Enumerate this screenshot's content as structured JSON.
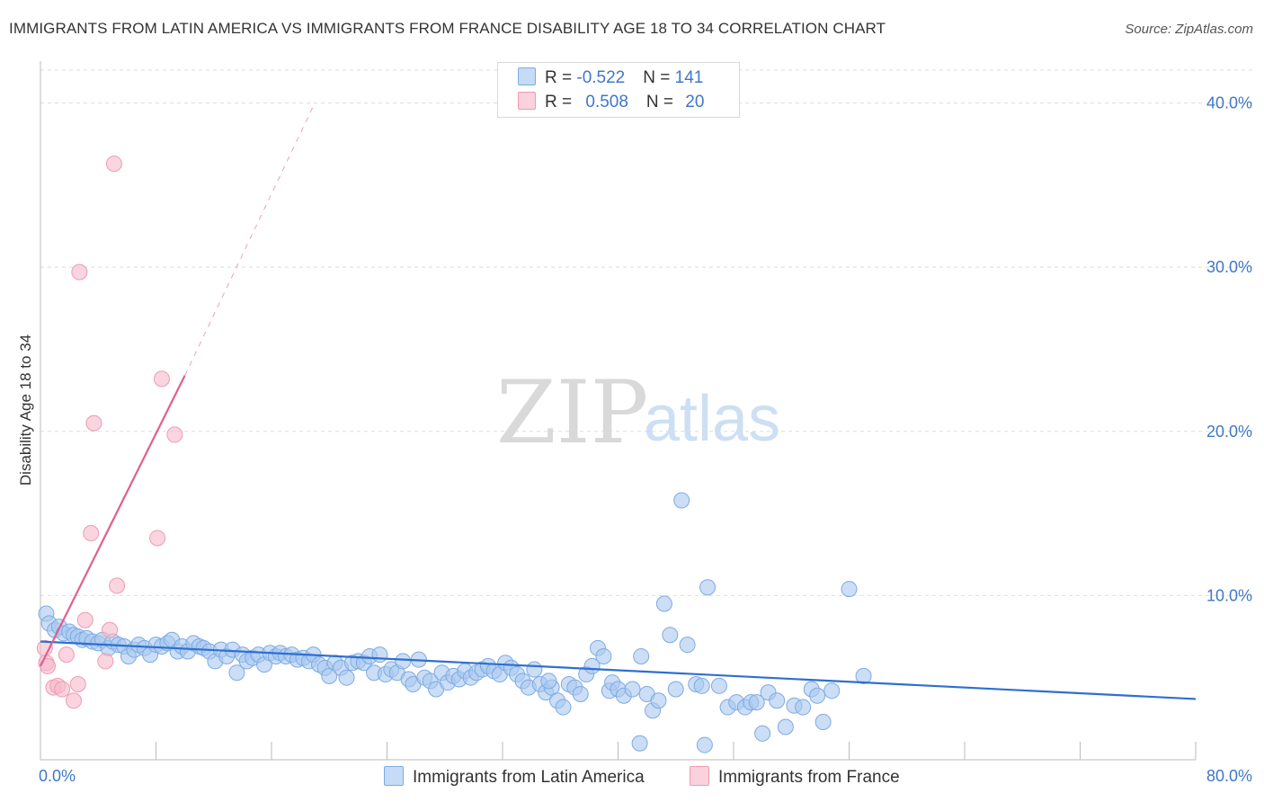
{
  "header": {
    "title": "IMMIGRANTS FROM LATIN AMERICA VS IMMIGRANTS FROM FRANCE DISABILITY AGE 18 TO 34 CORRELATION CHART",
    "source_prefix": "Source: ",
    "source_name": "ZipAtlas.com"
  },
  "watermark": {
    "zip": "ZIP",
    "atlas": "atlas"
  },
  "legend": {
    "rows": [
      {
        "r_label": "R = ",
        "r_value": "-0.522",
        "n_label": "N = ",
        "n_value": "141",
        "color": "#a9c8f0"
      },
      {
        "r_label": "R = ",
        "r_value": "0.508",
        "n_label": "N = ",
        "n_value": "20",
        "color": "#f6b9cc"
      }
    ]
  },
  "bottom_legend": [
    {
      "label": "Immigrants from Latin America",
      "color": "#a9c8f0"
    },
    {
      "label": "Immigrants from France",
      "color": "#f6b9cc"
    }
  ],
  "colors": {
    "blue_fill": "#a9c8f0",
    "blue_stroke": "#7eaae2",
    "blue_line": "#2f6fd0",
    "pink_fill": "#f6b9cc",
    "pink_stroke": "#ee9ab4",
    "pink_line": "#e0608c",
    "grid": "#dddddd",
    "tick_text": "#3f77c8"
  },
  "chart_data": {
    "type": "scatter",
    "title": "IMMIGRANTS FROM LATIN AMERICA VS IMMIGRANTS FROM FRANCE DISABILITY AGE 18 TO 34 CORRELATION CHART",
    "xlabel": "",
    "ylabel": "Disability Age 18 to 34",
    "xlim": [
      0,
      80
    ],
    "ylim": [
      0,
      42
    ],
    "x_tick_labels": [
      "0.0%",
      "80.0%"
    ],
    "y_ticks": [
      10,
      20,
      30,
      40
    ],
    "y_tick_labels": [
      "10.0%",
      "20.0%",
      "30.0%",
      "40.0%"
    ],
    "grid": true,
    "series": [
      {
        "name": "Immigrants from Latin America",
        "R": -0.522,
        "N": 141,
        "trend": {
          "x": [
            0,
            80
          ],
          "y": [
            7.2,
            3.7
          ]
        },
        "points": [
          [
            0.4,
            8.9
          ],
          [
            0.6,
            8.3
          ],
          [
            1.0,
            7.9
          ],
          [
            1.3,
            8.1
          ],
          [
            1.6,
            7.7
          ],
          [
            2.0,
            7.8
          ],
          [
            2.3,
            7.6
          ],
          [
            2.6,
            7.5
          ],
          [
            2.9,
            7.3
          ],
          [
            3.2,
            7.4
          ],
          [
            3.6,
            7.2
          ],
          [
            4.0,
            7.1
          ],
          [
            4.3,
            7.3
          ],
          [
            4.7,
            6.8
          ],
          [
            5.0,
            7.2
          ],
          [
            5.4,
            7.0
          ],
          [
            5.8,
            6.9
          ],
          [
            6.1,
            6.3
          ],
          [
            6.5,
            6.7
          ],
          [
            6.8,
            7.0
          ],
          [
            7.2,
            6.8
          ],
          [
            7.6,
            6.4
          ],
          [
            8.0,
            7.0
          ],
          [
            8.4,
            6.9
          ],
          [
            8.8,
            7.1
          ],
          [
            9.1,
            7.3
          ],
          [
            9.5,
            6.6
          ],
          [
            9.8,
            6.9
          ],
          [
            10.2,
            6.6
          ],
          [
            10.6,
            7.1
          ],
          [
            11.0,
            6.9
          ],
          [
            11.3,
            6.8
          ],
          [
            11.7,
            6.6
          ],
          [
            12.1,
            6.0
          ],
          [
            12.5,
            6.7
          ],
          [
            12.9,
            6.3
          ],
          [
            13.3,
            6.7
          ],
          [
            13.6,
            5.3
          ],
          [
            14.0,
            6.4
          ],
          [
            14.3,
            6.0
          ],
          [
            14.7,
            6.2
          ],
          [
            15.1,
            6.4
          ],
          [
            15.5,
            5.8
          ],
          [
            15.9,
            6.5
          ],
          [
            16.3,
            6.3
          ],
          [
            16.6,
            6.5
          ],
          [
            17.0,
            6.3
          ],
          [
            17.4,
            6.4
          ],
          [
            17.8,
            6.1
          ],
          [
            18.2,
            6.2
          ],
          [
            18.6,
            6.0
          ],
          [
            18.9,
            6.4
          ],
          [
            19.3,
            5.8
          ],
          [
            19.7,
            5.6
          ],
          [
            20.0,
            5.1
          ],
          [
            20.4,
            5.9
          ],
          [
            20.8,
            5.6
          ],
          [
            21.2,
            5.0
          ],
          [
            21.6,
            5.9
          ],
          [
            22.0,
            6.0
          ],
          [
            22.4,
            5.9
          ],
          [
            22.8,
            6.3
          ],
          [
            23.1,
            5.3
          ],
          [
            23.5,
            6.4
          ],
          [
            23.9,
            5.2
          ],
          [
            24.3,
            5.5
          ],
          [
            24.7,
            5.3
          ],
          [
            25.1,
            6.0
          ],
          [
            25.5,
            4.9
          ],
          [
            25.8,
            4.6
          ],
          [
            26.2,
            6.1
          ],
          [
            26.6,
            5.0
          ],
          [
            27.0,
            4.8
          ],
          [
            27.4,
            4.3
          ],
          [
            27.8,
            5.3
          ],
          [
            28.2,
            4.7
          ],
          [
            28.6,
            5.1
          ],
          [
            29.0,
            4.9
          ],
          [
            29.4,
            5.4
          ],
          [
            29.8,
            5.0
          ],
          [
            30.2,
            5.3
          ],
          [
            30.6,
            5.5
          ],
          [
            31.0,
            5.7
          ],
          [
            31.4,
            5.4
          ],
          [
            31.8,
            5.2
          ],
          [
            32.2,
            5.9
          ],
          [
            32.6,
            5.6
          ],
          [
            33.0,
            5.2
          ],
          [
            33.4,
            4.8
          ],
          [
            33.8,
            4.4
          ],
          [
            34.2,
            5.5
          ],
          [
            34.6,
            4.6
          ],
          [
            35.0,
            4.1
          ],
          [
            35.4,
            4.4
          ],
          [
            35.8,
            3.6
          ],
          [
            36.2,
            3.2
          ],
          [
            36.6,
            4.6
          ],
          [
            37.0,
            4.4
          ],
          [
            37.4,
            4.0
          ],
          [
            37.8,
            5.2
          ],
          [
            38.2,
            5.7
          ],
          [
            38.6,
            6.8
          ],
          [
            39.0,
            6.3
          ],
          [
            39.4,
            4.2
          ],
          [
            39.6,
            4.7
          ],
          [
            40.0,
            4.3
          ],
          [
            40.4,
            3.9
          ],
          [
            41.0,
            4.3
          ],
          [
            41.6,
            6.3
          ],
          [
            42.0,
            4.0
          ],
          [
            42.4,
            3.0
          ],
          [
            42.8,
            3.6
          ],
          [
            43.2,
            9.5
          ],
          [
            43.6,
            7.6
          ],
          [
            44.0,
            4.3
          ],
          [
            44.4,
            15.8
          ],
          [
            44.8,
            7.0
          ],
          [
            45.4,
            4.6
          ],
          [
            45.8,
            4.5
          ],
          [
            46.2,
            10.5
          ],
          [
            47.0,
            4.5
          ],
          [
            47.6,
            3.2
          ],
          [
            48.2,
            3.5
          ],
          [
            48.8,
            3.2
          ],
          [
            49.2,
            3.5
          ],
          [
            50.0,
            1.6
          ],
          [
            50.4,
            4.1
          ],
          [
            51.0,
            3.6
          ],
          [
            51.6,
            2.0
          ],
          [
            52.2,
            3.3
          ],
          [
            52.8,
            3.2
          ],
          [
            53.4,
            4.3
          ],
          [
            53.8,
            3.9
          ],
          [
            54.2,
            2.3
          ],
          [
            54.8,
            4.2
          ],
          [
            56.0,
            10.4
          ],
          [
            57.0,
            5.1
          ],
          [
            41.5,
            1.0
          ],
          [
            46.0,
            0.9
          ],
          [
            49.6,
            3.5
          ],
          [
            35.2,
            4.8
          ]
        ]
      },
      {
        "name": "Immigrants from France",
        "R": 0.508,
        "N": 20,
        "trend": {
          "x": [
            0,
            10
          ],
          "y": [
            5.7,
            23.4
          ]
        },
        "trend_dashed": {
          "x": [
            10,
            19
          ],
          "y": [
            23.4,
            40
          ]
        },
        "points": [
          [
            0.3,
            6.8
          ],
          [
            0.4,
            5.9
          ],
          [
            0.5,
            5.7
          ],
          [
            0.9,
            4.4
          ],
          [
            1.2,
            4.5
          ],
          [
            1.5,
            4.3
          ],
          [
            1.8,
            6.4
          ],
          [
            2.3,
            3.6
          ],
          [
            2.6,
            4.6
          ],
          [
            3.1,
            8.5
          ],
          [
            3.5,
            13.8
          ],
          [
            3.7,
            20.5
          ],
          [
            4.5,
            6.0
          ],
          [
            4.8,
            7.9
          ],
          [
            5.1,
            36.3
          ],
          [
            5.3,
            10.6
          ],
          [
            2.7,
            29.7
          ],
          [
            8.1,
            13.5
          ],
          [
            8.4,
            23.2
          ],
          [
            9.3,
            19.8
          ]
        ]
      }
    ]
  }
}
